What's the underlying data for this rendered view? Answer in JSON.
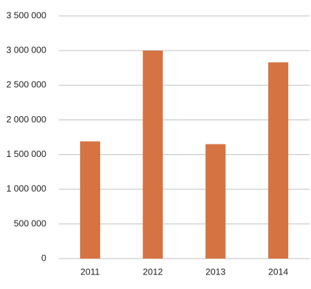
{
  "chart_data": {
    "type": "bar",
    "categories": [
      "2011",
      "2012",
      "2013",
      "2014"
    ],
    "values": [
      1690000,
      3000000,
      1650000,
      2830000
    ],
    "color": "#d57343",
    "ylim": [
      0,
      3500000
    ],
    "yticks": [
      0,
      {
        "value": 500000,
        "label": "500 000"
      },
      {
        "value": 1000000,
        "label": "1 000 000"
      },
      {
        "value": 1500000,
        "label": "1 500 000"
      },
      {
        "value": 2000000,
        "label": "2 000 000"
      },
      {
        "value": 2500000,
        "label": "2 500 000"
      },
      {
        "value": 3000000,
        "label": "3 000 000"
      },
      {
        "value": 3500000,
        "label": "3 500 000"
      }
    ],
    "grid": true
  }
}
